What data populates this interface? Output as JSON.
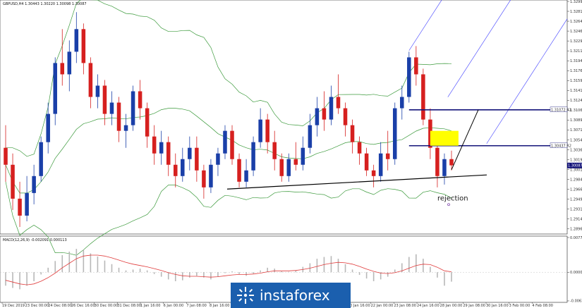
{
  "header": {
    "main_title": "GBPUSD,H4  1.30443 1.30220 1.30098 1.30087",
    "osc_title": "MACD(12,26,9) -0.002091 0.000113"
  },
  "colors": {
    "bull": "#1a3fa8",
    "bear": "#d6201f",
    "bollinger": "#3c9a3c",
    "signal": "#e03b3b",
    "histogram": "#b8b8b8",
    "resistance": "#14147a",
    "zone": "#ffff00",
    "channel": "#3a3aff",
    "support": "#000000",
    "price_badge": "#14147a",
    "brand_bg": "#1b5fae"
  },
  "chart_data": [
    {
      "type": "candlestick",
      "symbol": "GBPUSD",
      "timeframe": "H4",
      "xlabels": [
        "19 Dec 2019",
        "23 Dec 00:00",
        "24 Dec 08:00",
        "26 Dec 16:00",
        "30 Dec 00:00",
        "31 Dec 08:00",
        "1 Jan 16:00",
        "6 Jan 00:00",
        "7 Jan 08:00",
        "8 Jan 16:00",
        "10 Jan 00:00",
        "13 Jan 08:00",
        "14 Jan 16:00",
        "16 Jan 00:00",
        "17 Jan 08:00",
        "20 Jan 16:00",
        "22 Jan 00:00",
        "23 Jan 08:00",
        "24 Jan 16:00",
        "28 Jan 00:00",
        "29 Jan 08:00",
        "30 Jan 16:00",
        "3 Feb 00:00",
        "4 Feb 08:00"
      ],
      "y_ticks": [
        1.3299,
        1.32815,
        1.3264,
        1.32465,
        1.3229,
        1.32115,
        1.3194,
        1.31765,
        1.3159,
        1.31415,
        1.3124,
        1.31065,
        1.3089,
        1.30715,
        1.3054,
        1.30365,
        1.3019,
        1.30015,
        1.2984,
        1.29665,
        1.2949,
        1.29315,
        1.2914,
        1.28965
      ],
      "ylim": [
        1.289,
        1.3299
      ],
      "current_price": "1.30087",
      "levels": [
        {
          "label": "1.31072 R1",
          "price": 1.31072
        },
        {
          "label": "1.30437 R2",
          "price": 1.30437
        }
      ],
      "candles": [
        [
          1.304,
          1.308,
          1.298,
          1.301
        ],
        [
          1.301,
          1.303,
          1.293,
          1.295
        ],
        [
          1.295,
          1.298,
          1.29,
          1.292
        ],
        [
          1.292,
          1.299,
          1.291,
          1.296
        ],
        [
          1.296,
          1.301,
          1.294,
          1.299
        ],
        [
          1.299,
          1.306,
          1.298,
          1.305
        ],
        [
          1.305,
          1.312,
          1.303,
          1.31
        ],
        [
          1.31,
          1.32,
          1.308,
          1.319
        ],
        [
          1.319,
          1.325,
          1.315,
          1.317
        ],
        [
          1.317,
          1.323,
          1.314,
          1.321
        ],
        [
          1.321,
          1.328,
          1.319,
          1.325
        ],
        [
          1.325,
          1.326,
          1.317,
          1.319
        ],
        [
          1.319,
          1.32,
          1.311,
          1.313
        ],
        [
          1.313,
          1.317,
          1.311,
          1.315
        ],
        [
          1.315,
          1.316,
          1.308,
          1.31
        ],
        [
          1.31,
          1.314,
          1.308,
          1.312
        ],
        [
          1.312,
          1.313,
          1.305,
          1.307
        ],
        [
          1.307,
          1.31,
          1.304,
          1.308
        ],
        [
          1.308,
          1.315,
          1.307,
          1.314
        ],
        [
          1.314,
          1.316,
          1.309,
          1.311
        ],
        [
          1.311,
          1.312,
          1.304,
          1.306
        ],
        [
          1.306,
          1.308,
          1.301,
          1.303
        ],
        [
          1.303,
          1.307,
          1.301,
          1.305
        ],
        [
          1.305,
          1.306,
          1.299,
          1.301
        ],
        [
          1.301,
          1.303,
          1.297,
          1.299
        ],
        [
          1.299,
          1.304,
          1.298,
          1.302
        ],
        [
          1.302,
          1.306,
          1.3,
          1.304
        ],
        [
          1.304,
          1.306,
          1.298,
          1.3
        ],
        [
          1.3,
          1.301,
          1.295,
          1.297
        ],
        [
          1.297,
          1.302,
          1.296,
          1.301
        ],
        [
          1.301,
          1.304,
          1.299,
          1.303
        ],
        [
          1.303,
          1.308,
          1.302,
          1.307
        ],
        [
          1.307,
          1.308,
          1.301,
          1.302
        ],
        [
          1.302,
          1.303,
          1.297,
          1.298
        ],
        [
          1.298,
          1.302,
          1.297,
          1.3
        ],
        [
          1.3,
          1.306,
          1.299,
          1.305
        ],
        [
          1.305,
          1.311,
          1.304,
          1.309
        ],
        [
          1.309,
          1.31,
          1.303,
          1.305
        ],
        [
          1.305,
          1.307,
          1.3,
          1.302
        ],
        [
          1.302,
          1.303,
          1.298,
          1.299
        ],
        [
          1.299,
          1.303,
          1.298,
          1.302
        ],
        [
          1.302,
          1.305,
          1.3,
          1.301
        ],
        [
          1.301,
          1.306,
          1.3,
          1.304
        ],
        [
          1.304,
          1.31,
          1.303,
          1.308
        ],
        [
          1.308,
          1.313,
          1.306,
          1.311
        ],
        [
          1.311,
          1.314,
          1.307,
          1.309
        ],
        [
          1.309,
          1.315,
          1.308,
          1.313
        ],
        [
          1.313,
          1.317,
          1.31,
          1.311
        ],
        [
          1.311,
          1.312,
          1.306,
          1.308
        ],
        [
          1.308,
          1.309,
          1.303,
          1.305
        ],
        [
          1.305,
          1.306,
          1.301,
          1.303
        ],
        [
          1.303,
          1.304,
          1.299,
          1.3
        ],
        [
          1.3,
          1.301,
          1.297,
          1.299
        ],
        [
          1.299,
          1.305,
          1.298,
          1.303
        ],
        [
          1.303,
          1.307,
          1.3,
          1.302
        ],
        [
          1.302,
          1.312,
          1.301,
          1.311
        ],
        [
          1.311,
          1.315,
          1.309,
          1.313
        ],
        [
          1.313,
          1.321,
          1.312,
          1.32
        ],
        [
          1.32,
          1.322,
          1.315,
          1.317
        ],
        [
          1.317,
          1.318,
          1.308,
          1.309
        ],
        [
          1.309,
          1.311,
          1.302,
          1.304
        ],
        [
          1.304,
          1.306,
          1.297,
          1.299
        ],
        [
          1.299,
          1.303,
          1.2975,
          1.302
        ],
        [
          1.302,
          1.3035,
          1.3,
          1.3009
        ]
      ],
      "annotations": {
        "zone": {
          "from_price": 1.30437,
          "to_price": 1.307
        },
        "support_line": {
          "from_price": 1.2967,
          "to_price": 1.2992
        },
        "channel_anchor_price": 1.3212,
        "projection": {
          "from_price": 1.30087,
          "to_price": 1.31072
        },
        "rejection_label": "rejection",
        "rejection_price": 1.2952
      }
    },
    {
      "type": "bar+line",
      "title": "MACD(12,26,9) -0.002091 0.000113",
      "y_ticks": [
        "0.007730",
        "0.000000",
        "-0.006391"
      ],
      "ylim": [
        -0.0064,
        0.00773
      ],
      "histogram": [
        -0.003,
        -0.0035,
        -0.0038,
        -0.003,
        -0.002,
        -0.0005,
        0.001,
        0.0025,
        0.0038,
        0.0046,
        0.0052,
        0.005,
        0.0042,
        0.0035,
        0.0026,
        0.0018,
        0.001,
        0.0004,
        0.0006,
        0.0008,
        0.0004,
        -0.0004,
        -0.001,
        -0.0016,
        -0.002,
        -0.0018,
        -0.0012,
        -0.0008,
        -0.0012,
        -0.0016,
        -0.001,
        -0.0002,
        0.0002,
        -0.0004,
        -0.0008,
        -0.0003,
        0.0004,
        0.001,
        0.0008,
        0.0002,
        0.0001,
        0.0004,
        0.0012,
        0.002,
        0.003,
        0.0034,
        0.0036,
        0.003,
        0.0018,
        0.0006,
        -0.0006,
        -0.0014,
        -0.002,
        -0.0016,
        -0.001,
        0.0006,
        0.002,
        0.0034,
        0.004,
        0.003,
        0.0012,
        -0.0012,
        -0.003,
        -0.0021
      ],
      "signal": [
        -0.0018,
        -0.0022,
        -0.0026,
        -0.0028,
        -0.0026,
        -0.002,
        -0.0012,
        -0.0002,
        0.001,
        0.002,
        0.003,
        0.0036,
        0.0038,
        0.0038,
        0.0036,
        0.0032,
        0.0027,
        0.0022,
        0.0018,
        0.0015,
        0.0012,
        0.0008,
        0.0004,
        -0.0001,
        -0.0005,
        -0.0008,
        -0.0009,
        -0.0009,
        -0.001,
        -0.0011,
        -0.001,
        -0.0008,
        -0.0006,
        -0.0005,
        -0.0005,
        -0.0004,
        -0.0002,
        0.0001,
        0.0003,
        0.0003,
        0.0003,
        0.0004,
        0.0006,
        0.0009,
        0.0013,
        0.0017,
        0.002,
        0.0022,
        0.0021,
        0.0018,
        0.0013,
        0.0007,
        0.0002,
        -0.0002,
        -0.0003,
        -0.0001,
        0.0003,
        0.0009,
        0.0015,
        0.0018,
        0.0017,
        0.0011,
        0.0003,
        0.0001
      ]
    }
  ],
  "brand": {
    "label": "instaforex"
  }
}
